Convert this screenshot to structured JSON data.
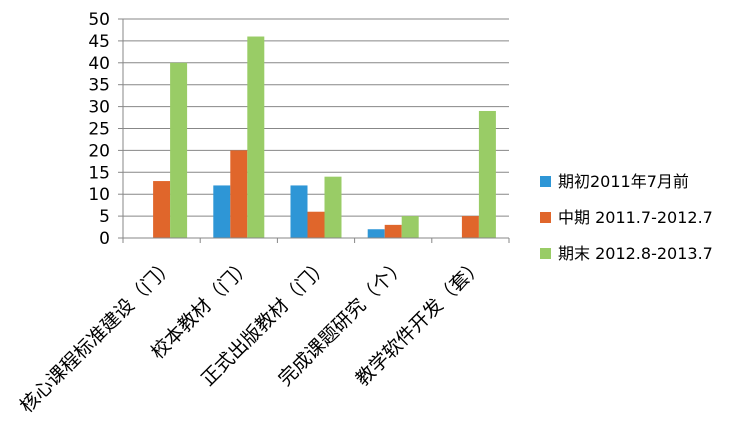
{
  "chart_data": {
    "type": "bar",
    "categories": [
      "核心课程标准建设（门）",
      "校本教材（门）",
      "正式出版教材（门）",
      "完成课题研究（个）",
      "教学软件开发（套）"
    ],
    "series": [
      {
        "name": "期初2011年7月前",
        "color": "#2E96D6",
        "values": [
          0,
          12,
          12,
          2,
          0
        ]
      },
      {
        "name": "中期 2011.7-2012.7",
        "color": "#E0662B",
        "values": [
          13,
          20,
          6,
          3,
          5
        ]
      },
      {
        "name": "期末 2012.8-2013.7",
        "color": "#99CC66",
        "values": [
          40,
          46,
          14,
          5,
          29
        ]
      }
    ],
    "ylim": [
      0,
      50
    ],
    "yticks": [
      "0",
      "5",
      "10",
      "15",
      "20",
      "25",
      "30",
      "35",
      "40",
      "45",
      "50"
    ],
    "grid": true,
    "legend_position": "right",
    "title": "",
    "xlabel": "",
    "ylabel": ""
  }
}
